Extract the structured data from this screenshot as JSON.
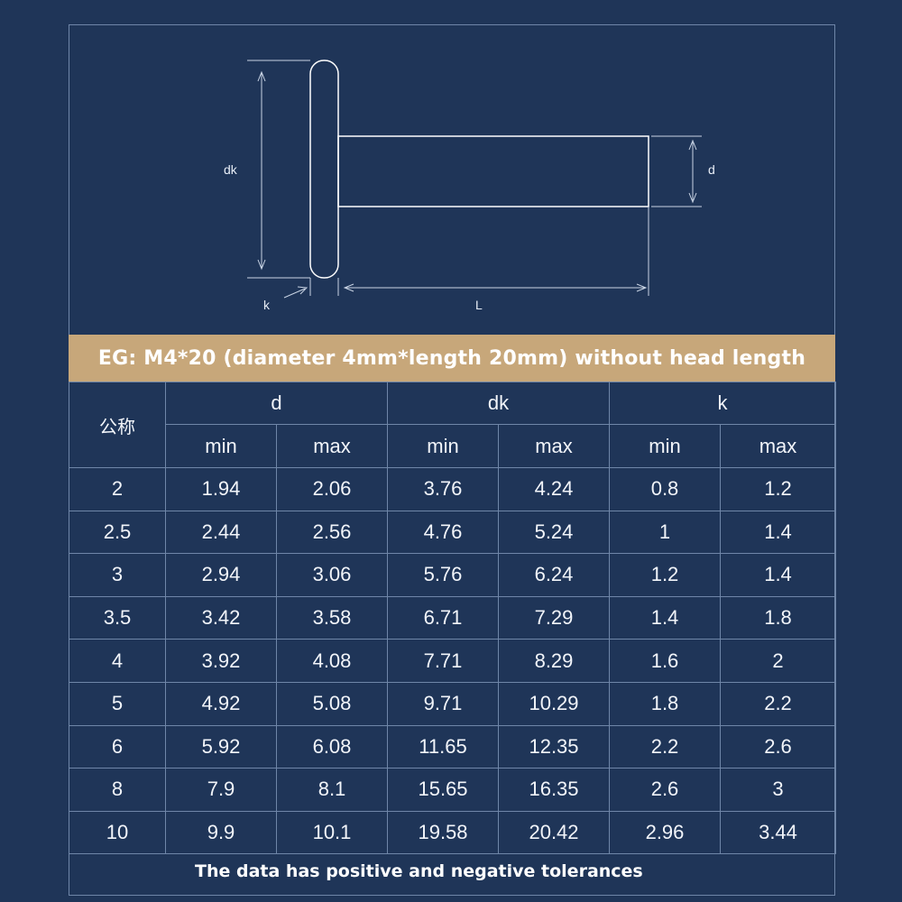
{
  "diagram": {
    "label_dk": "dk",
    "label_d": "d",
    "label_k": "k",
    "label_L": "L"
  },
  "banner_text": "EG: M4*20 (diameter 4mm*length 20mm) without head length",
  "table": {
    "nominal_header": "公称",
    "group_headers": [
      "d",
      "dk",
      "k"
    ],
    "sub_headers": [
      "min",
      "max",
      "min",
      "max",
      "min",
      "max"
    ],
    "rows": [
      [
        "2",
        "1.94",
        "2.06",
        "3.76",
        "4.24",
        "0.8",
        "1.2"
      ],
      [
        "2.5",
        "2.44",
        "2.56",
        "4.76",
        "5.24",
        "1",
        "1.4"
      ],
      [
        "3",
        "2.94",
        "3.06",
        "5.76",
        "6.24",
        "1.2",
        "1.4"
      ],
      [
        "3.5",
        "3.42",
        "3.58",
        "6.71",
        "7.29",
        "1.4",
        "1.8"
      ],
      [
        "4",
        "3.92",
        "4.08",
        "7.71",
        "8.29",
        "1.6",
        "2"
      ],
      [
        "5",
        "4.92",
        "5.08",
        "9.71",
        "10.29",
        "1.8",
        "2.2"
      ],
      [
        "6",
        "5.92",
        "6.08",
        "11.65",
        "12.35",
        "2.2",
        "2.6"
      ],
      [
        "8",
        "7.9",
        "8.1",
        "15.65",
        "16.35",
        "2.6",
        "3"
      ],
      [
        "10",
        "9.9",
        "10.1",
        "19.58",
        "20.42",
        "2.96",
        "3.44"
      ]
    ]
  },
  "footer_text": "The data has positive and negative tolerances"
}
